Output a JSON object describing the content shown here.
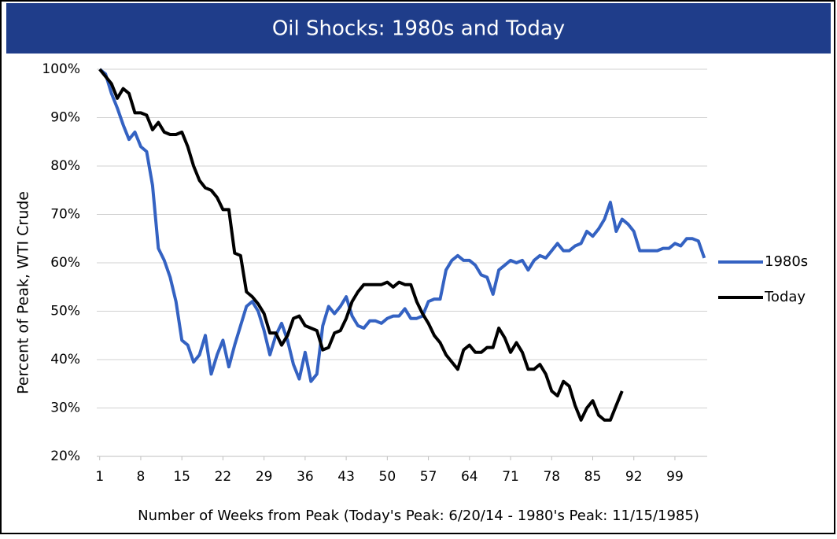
{
  "chart_data": {
    "type": "line",
    "title": "Oil Shocks: 1980s and Today",
    "x_label": "Number of Weeks from Peak (Today's Peak: 6/20/14 - 1980's Peak: 11/15/1985)",
    "y_label": "Percent of Peak, WTI Crude",
    "x": [
      1,
      2,
      3,
      4,
      5,
      6,
      7,
      8,
      9,
      10,
      11,
      12,
      13,
      14,
      15,
      16,
      17,
      18,
      19,
      20,
      21,
      22,
      23,
      24,
      25,
      26,
      27,
      28,
      29,
      30,
      31,
      32,
      33,
      34,
      35,
      36,
      37,
      38,
      39,
      40,
      41,
      42,
      43,
      44,
      45,
      46,
      47,
      48,
      49,
      50,
      51,
      52,
      53,
      54,
      55,
      56,
      57,
      58,
      59,
      60,
      61,
      62,
      63,
      64,
      65,
      66,
      67,
      68,
      69,
      70,
      71,
      72,
      73,
      74,
      75,
      76,
      77,
      78,
      79,
      80,
      81,
      82,
      83,
      84,
      85,
      86,
      87,
      88,
      89,
      90,
      91,
      92,
      93,
      94,
      95,
      96,
      97,
      98,
      99,
      100,
      101,
      102,
      103,
      104
    ],
    "series": [
      {
        "name": "1980s",
        "color": "#3462c2",
        "values": [
          100,
          99,
          95,
          92,
          88.5,
          85.5,
          87,
          84,
          83,
          76,
          63,
          60.5,
          57,
          52,
          44,
          43,
          39.5,
          41,
          45,
          37,
          41,
          44,
          38.5,
          43,
          47,
          51,
          52,
          50,
          46,
          41,
          45,
          47.5,
          44,
          39,
          36,
          41.5,
          35.5,
          37,
          47,
          51,
          49.5,
          51,
          53,
          49,
          47,
          46.5,
          48,
          48,
          47.5,
          48.5,
          49,
          49,
          50.5,
          48.5,
          48.5,
          49,
          52,
          52.5,
          52.5,
          58.5,
          60.5,
          61.5,
          60.5,
          60.5,
          59.5,
          57.5,
          57,
          53.5,
          58.5,
          59.5,
          60.5,
          60,
          60.5,
          58.5,
          60.5,
          61.5,
          61,
          62.5,
          64,
          62.5,
          62.5,
          63.5,
          64,
          66.5,
          65.5,
          67,
          69,
          72.5,
          66.5,
          69,
          68,
          66.5,
          62.5,
          62.5,
          62.5,
          62.5,
          63,
          63,
          64,
          63.5,
          65,
          65,
          64.5,
          61
        ]
      },
      {
        "name": "Today",
        "color": "#000000",
        "values": [
          100,
          98.5,
          97,
          94,
          96,
          95,
          91,
          91,
          90.5,
          87.5,
          89,
          87,
          86.5,
          86.5,
          87,
          84,
          80,
          77,
          75.5,
          75,
          73.5,
          71,
          71,
          62,
          61.5,
          54,
          53,
          51.5,
          49.5,
          45.5,
          45.5,
          43,
          45,
          48.5,
          49,
          47,
          46.5,
          46,
          42,
          42.5,
          45.5,
          46,
          48.5,
          52,
          54,
          55.5,
          55.5,
          55.5,
          55.5,
          56,
          55,
          56,
          55.5,
          55.5,
          52,
          49.5,
          47.5,
          45,
          43.5,
          41,
          39.5,
          38,
          42,
          43,
          41.5,
          41.5,
          42.5,
          42.5,
          46.5,
          44.5,
          41.5,
          43.5,
          41.5,
          38,
          38,
          39,
          37,
          33.5,
          32.5,
          35.5,
          34.5,
          30.5,
          27.5,
          30,
          31.5,
          28.5,
          27.5,
          27.5,
          30.5,
          33.5,
          null,
          null,
          null,
          null,
          null,
          null,
          null,
          null,
          null,
          null,
          null,
          null,
          null,
          null
        ]
      }
    ],
    "xlim": [
      0.5,
      104.5
    ],
    "xticks": [
      1,
      8,
      15,
      22,
      29,
      36,
      43,
      50,
      57,
      64,
      71,
      78,
      85,
      92,
      99
    ],
    "ylim": [
      20,
      100
    ],
    "yticks": [
      {
        "value": 20,
        "label": "20%"
      },
      {
        "value": 30,
        "label": "30%"
      },
      {
        "value": 40,
        "label": "40%"
      },
      {
        "value": 50,
        "label": "50%"
      },
      {
        "value": 60,
        "label": "60%"
      },
      {
        "value": 70,
        "label": "70%"
      },
      {
        "value": 80,
        "label": "80%"
      },
      {
        "value": 90,
        "label": "90%"
      },
      {
        "value": 100,
        "label": "100%"
      }
    ],
    "grid": true,
    "legend": "right"
  }
}
